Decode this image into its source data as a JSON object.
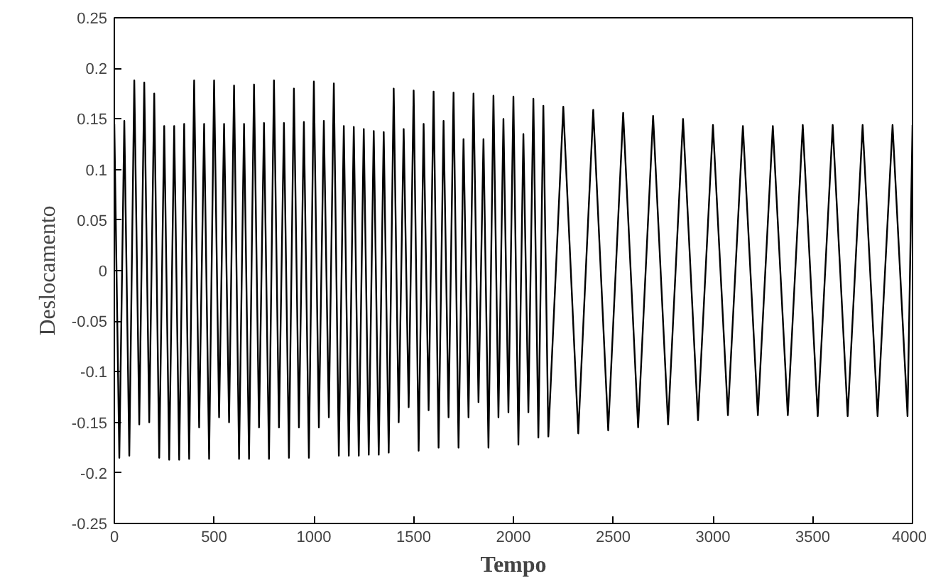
{
  "chart_data": {
    "type": "line",
    "xlabel": "Tempo",
    "ylabel": "Deslocamento",
    "xlim": [
      0,
      4000
    ],
    "xticks": [
      0,
      500,
      1000,
      1500,
      2000,
      2500,
      3000,
      3500,
      4000
    ],
    "ylim": [
      -0.25,
      0.25
    ],
    "yticks": [
      -0.25,
      -0.2,
      -0.15,
      -0.1,
      -0.05,
      0,
      0.05,
      0.1,
      0.15,
      0.2,
      0.25
    ],
    "grid": false,
    "series": [
      {
        "color": "#000000",
        "x": [
          0,
          25,
          50,
          75,
          100,
          125,
          150,
          175,
          200,
          225,
          250,
          275,
          300,
          325,
          350,
          375,
          400,
          425,
          450,
          475,
          500,
          525,
          550,
          575,
          600,
          625,
          650,
          675,
          700,
          725,
          750,
          775,
          800,
          825,
          850,
          875,
          900,
          925,
          950,
          975,
          1000,
          1025,
          1050,
          1075,
          1100,
          1125,
          1150,
          1175,
          1200,
          1225,
          1250,
          1275,
          1300,
          1325,
          1350,
          1375,
          1400,
          1425,
          1450,
          1475,
          1500,
          1525,
          1550,
          1575,
          1600,
          1625,
          1650,
          1675,
          1700,
          1725,
          1750,
          1775,
          1800,
          1825,
          1850,
          1875,
          1900,
          1925,
          1950,
          1975,
          2000,
          2025,
          2050,
          2075,
          2100,
          2125,
          2150,
          2175,
          2250,
          2325,
          2400,
          2475,
          2550,
          2625,
          2700,
          2775,
          2850,
          2925,
          3000,
          3075,
          3150,
          3225,
          3300,
          3375,
          3450,
          3525,
          3600,
          3675,
          3750,
          3825,
          3900,
          3975,
          4000
        ],
        "values": [
          0.145,
          -0.185,
          0.148,
          -0.183,
          0.188,
          -0.152,
          0.186,
          -0.15,
          0.175,
          -0.185,
          0.143,
          -0.187,
          0.143,
          -0.187,
          0.145,
          -0.186,
          0.188,
          -0.155,
          0.145,
          -0.186,
          0.188,
          -0.145,
          0.145,
          -0.15,
          0.183,
          -0.186,
          0.145,
          -0.186,
          0.184,
          -0.155,
          0.146,
          -0.186,
          0.188,
          -0.155,
          0.146,
          -0.185,
          0.18,
          -0.155,
          0.147,
          -0.185,
          0.187,
          -0.155,
          0.148,
          -0.145,
          0.185,
          -0.183,
          0.143,
          -0.183,
          0.142,
          -0.183,
          0.14,
          -0.182,
          0.138,
          -0.182,
          0.137,
          -0.18,
          0.18,
          -0.15,
          0.14,
          -0.135,
          0.178,
          -0.178,
          0.145,
          -0.138,
          0.177,
          -0.175,
          0.148,
          -0.145,
          0.176,
          -0.175,
          0.13,
          -0.145,
          0.175,
          -0.13,
          0.13,
          -0.175,
          0.173,
          -0.145,
          0.15,
          -0.14,
          0.172,
          -0.172,
          0.135,
          -0.14,
          0.17,
          -0.165,
          0.163,
          -0.164,
          0.162,
          -0.161,
          0.159,
          -0.158,
          0.156,
          -0.155,
          0.153,
          -0.152,
          0.15,
          -0.148,
          0.144,
          -0.143,
          0.143,
          -0.143,
          0.143,
          -0.143,
          0.144,
          -0.144,
          0.144,
          -0.144,
          0.144,
          -0.144,
          0.144,
          -0.144,
          0.144
        ]
      }
    ]
  }
}
